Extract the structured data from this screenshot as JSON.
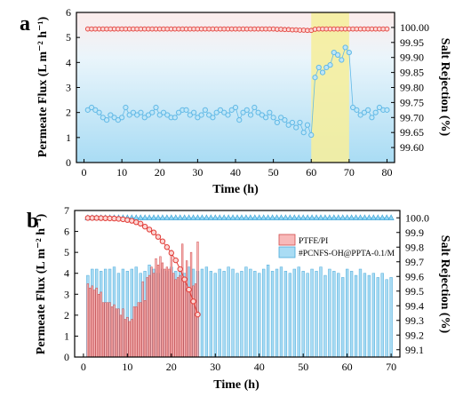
{
  "figure": {
    "panel_a_label": "a",
    "panel_b_label": "b"
  },
  "colors": {
    "flux_blue": "#62b9e6",
    "flux_fill": "#bfe6f8",
    "rejection_red": "#e23b36",
    "rejection_fill": "#fbd7d5",
    "highlight_band": "#f5ee9e",
    "ptfe_bar_fill": "#f8b9b9",
    "ptfe_bar_stroke": "#d14b4b",
    "pcnfs_bar_fill": "#a9dcf4",
    "pcnfs_bar_stroke": "#4aa9d9",
    "triangle_fill": "#8fd5f3"
  },
  "chart_data": [
    {
      "panel": "a",
      "type": "scatter",
      "xlabel": "Time (h)",
      "ylabel_left": "Permeate Flux (L m⁻² h⁻¹)",
      "ylabel_right": "Salt Rejection (%)",
      "xlim": [
        -2,
        82
      ],
      "ylim_left": [
        0,
        6
      ],
      "ylim_right": [
        99.55,
        100.05
      ],
      "x_ticks": [
        0,
        10,
        20,
        30,
        40,
        50,
        60,
        70,
        80
      ],
      "y_left_ticks": [
        0,
        1,
        2,
        3,
        4,
        5,
        6
      ],
      "y_right_ticks": [
        99.6,
        99.65,
        99.7,
        99.75,
        99.8,
        99.85,
        99.9,
        99.95,
        100.0
      ],
      "y_right_tick_labels": [
        "99.60",
        "99.65",
        "99.70",
        "99.75",
        "99.80",
        "99.85",
        "99.90",
        "99.95",
        "100.00"
      ],
      "highlight_range": [
        60,
        70
      ],
      "series": [
        {
          "role": "permeate-flux",
          "axis": "left",
          "x": [
            1,
            2,
            3,
            4,
            5,
            6,
            7,
            8,
            9,
            10,
            11,
            12,
            13,
            14,
            15,
            16,
            17,
            18,
            19,
            20,
            21,
            22,
            23,
            24,
            25,
            26,
            27,
            28,
            29,
            30,
            31,
            32,
            33,
            34,
            35,
            36,
            37,
            38,
            39,
            40,
            41,
            42,
            43,
            44,
            45,
            46,
            47,
            48,
            49,
            50,
            51,
            52,
            53,
            54,
            55,
            56,
            57,
            58,
            59,
            60,
            61,
            62,
            63,
            64,
            65,
            66,
            67,
            68,
            69,
            70,
            71,
            72,
            73,
            74,
            75,
            76,
            77,
            78,
            79,
            80
          ],
          "y": [
            2.1,
            2.2,
            2.1,
            2.0,
            1.8,
            1.7,
            1.9,
            1.8,
            1.7,
            1.8,
            2.2,
            1.9,
            2.0,
            1.9,
            2.0,
            1.8,
            1.9,
            2.0,
            2.2,
            1.9,
            2.0,
            1.9,
            1.8,
            1.8,
            2.0,
            2.1,
            2.1,
            1.9,
            2.0,
            1.8,
            1.9,
            2.1,
            1.9,
            1.8,
            2.0,
            2.1,
            2.0,
            1.9,
            2.1,
            2.2,
            1.7,
            2.0,
            2.1,
            1.9,
            2.2,
            2.0,
            1.9,
            1.8,
            2.0,
            1.8,
            1.6,
            1.8,
            1.7,
            1.5,
            1.6,
            1.4,
            1.6,
            1.2,
            1.5,
            1.1,
            3.4,
            3.8,
            3.6,
            3.8,
            3.9,
            4.4,
            4.3,
            4.1,
            4.6,
            4.4,
            2.2,
            2.1,
            1.9,
            2.0,
            2.1,
            1.8,
            2.0,
            2.2,
            2.1,
            2.1
          ]
        },
        {
          "role": "salt-rejection",
          "axis": "right",
          "x": [
            1,
            2,
            3,
            4,
            5,
            6,
            7,
            8,
            9,
            10,
            11,
            12,
            13,
            14,
            15,
            16,
            17,
            18,
            19,
            20,
            21,
            22,
            23,
            24,
            25,
            26,
            27,
            28,
            29,
            30,
            31,
            32,
            33,
            34,
            35,
            36,
            37,
            38,
            39,
            40,
            41,
            42,
            43,
            44,
            45,
            46,
            47,
            48,
            49,
            50,
            51,
            52,
            53,
            54,
            55,
            56,
            57,
            58,
            59,
            60,
            61,
            62,
            63,
            64,
            65,
            66,
            67,
            68,
            69,
            70,
            71,
            72,
            73,
            74,
            75,
            76,
            77,
            78,
            79,
            80
          ],
          "y": [
            99.995,
            99.995,
            99.995,
            99.995,
            99.995,
            99.995,
            99.995,
            99.995,
            99.995,
            99.995,
            99.995,
            99.995,
            99.995,
            99.995,
            99.995,
            99.995,
            99.995,
            99.995,
            99.995,
            99.995,
            99.995,
            99.995,
            99.995,
            99.995,
            99.995,
            99.995,
            99.995,
            99.995,
            99.995,
            99.995,
            99.995,
            99.995,
            99.995,
            99.995,
            99.995,
            99.995,
            99.995,
            99.995,
            99.995,
            99.995,
            99.995,
            99.995,
            99.995,
            99.995,
            99.995,
            99.995,
            99.995,
            99.995,
            99.995,
            99.995,
            99.994,
            99.994,
            99.993,
            99.993,
            99.992,
            99.992,
            99.991,
            99.991,
            99.99,
            99.99,
            99.994,
            99.995,
            99.995,
            99.995,
            99.995,
            99.995,
            99.995,
            99.995,
            99.995,
            99.995,
            99.995,
            99.995,
            99.995,
            99.995,
            99.995,
            99.995,
            99.995,
            99.995,
            99.995,
            99.995
          ]
        }
      ]
    },
    {
      "panel": "b",
      "type": "bar",
      "xlabel": "Time (h)",
      "ylabel_left": "Permeate Flux (L m⁻² h⁻¹)",
      "ylabel_right": "Salt Rejection (%)",
      "xlim": [
        -2,
        72
      ],
      "ylim_left": [
        0,
        7
      ],
      "ylim_right": [
        99.05,
        100.05
      ],
      "x_ticks": [
        0,
        10,
        20,
        30,
        40,
        50,
        60,
        70
      ],
      "y_left_ticks": [
        0,
        1,
        2,
        3,
        4,
        5,
        6,
        7
      ],
      "y_right_ticks": [
        99.1,
        99.2,
        99.3,
        99.4,
        99.5,
        99.6,
        99.7,
        99.8,
        99.9,
        100.0
      ],
      "y_right_tick_labels": [
        "99.1",
        "99.2",
        "99.3",
        "99.4",
        "99.5",
        "99.6",
        "99.7",
        "99.8",
        "99.9",
        "100.0"
      ],
      "legend": [
        "PTFE/PI",
        "#PCNFS-OH@PPTA-0.1/M"
      ],
      "legend_position": "center-right",
      "series": [
        {
          "name": "PTFE/PI",
          "kind": "bar",
          "axis": "left",
          "x": [
            1,
            1.5,
            2,
            2.5,
            3,
            3.5,
            4,
            4.5,
            5,
            5.5,
            6,
            6.5,
            7,
            7.5,
            8,
            8.5,
            9,
            9.5,
            10,
            10.5,
            11,
            11.5,
            12,
            12.5,
            13,
            13.5,
            14,
            14.5,
            15,
            15.5,
            16,
            16.5,
            17,
            17.5,
            18,
            18.5,
            19,
            19.5,
            20,
            20.5,
            21,
            21.5,
            22,
            22.5,
            23,
            23.5,
            24,
            24.5,
            25,
            25.5,
            26
          ],
          "values": [
            3.5,
            3.3,
            3.4,
            3.2,
            3.3,
            3.0,
            3.1,
            2.6,
            2.6,
            2.6,
            2.6,
            2.4,
            2.5,
            2.3,
            2.3,
            2.0,
            2.3,
            1.8,
            1.9,
            1.7,
            1.8,
            2.4,
            2.4,
            2.6,
            2.6,
            3.6,
            2.7,
            3.8,
            3.9,
            4.3,
            4.0,
            4.7,
            4.4,
            4.8,
            4.5,
            4.2,
            4.3,
            4.2,
            5.1,
            4.0,
            3.7,
            3.8,
            3.9,
            5.4,
            3.6,
            4.6,
            3.3,
            5.0,
            3.4,
            3.5,
            5.5
          ]
        },
        {
          "name": "#PCNFS-OH@PPTA-0.1/M",
          "kind": "bar",
          "axis": "left",
          "x": [
            1,
            2,
            3,
            4,
            5,
            6,
            7,
            8,
            9,
            10,
            11,
            12,
            13,
            14,
            15,
            16,
            17,
            18,
            19,
            20,
            21,
            22,
            23,
            24,
            25,
            26,
            27,
            28,
            29,
            30,
            31,
            32,
            33,
            34,
            35,
            36,
            37,
            38,
            39,
            40,
            41,
            42,
            43,
            44,
            45,
            46,
            47,
            48,
            49,
            50,
            51,
            52,
            53,
            54,
            55,
            56,
            57,
            58,
            59,
            60,
            61,
            62,
            63,
            64,
            65,
            66,
            67,
            68,
            69,
            70
          ],
          "values": [
            3.9,
            4.2,
            4.2,
            4.1,
            4.2,
            4.2,
            4.3,
            4.0,
            4.2,
            4.1,
            4.2,
            4.3,
            4.0,
            4.1,
            4.4,
            4.2,
            4.0,
            4.2,
            4.1,
            4.3,
            4.1,
            4.2,
            4.0,
            4.3,
            4.2,
            4.1,
            4.2,
            4.3,
            4.1,
            4.0,
            4.2,
            4.1,
            4.3,
            4.2,
            4.0,
            4.1,
            4.3,
            4.2,
            4.1,
            4.0,
            4.2,
            4.4,
            4.1,
            4.2,
            4.3,
            4.1,
            4.0,
            4.2,
            4.3,
            4.1,
            4.0,
            4.2,
            4.1,
            4.3,
            3.9,
            4.2,
            4.1,
            4.0,
            3.8,
            4.2,
            4.1,
            3.9,
            4.2,
            4.0,
            3.9,
            4.0,
            3.8,
            4.0,
            3.7,
            3.8
          ]
        },
        {
          "name": "PTFE/PI",
          "kind": "rejection",
          "axis": "right",
          "x": [
            1,
            2,
            3,
            4,
            5,
            6,
            7,
            8,
            9,
            10,
            11,
            12,
            13,
            14,
            15,
            16,
            17,
            18,
            19,
            20,
            21,
            22,
            23,
            24,
            25,
            26
          ],
          "values": [
            99.999,
            99.999,
            99.999,
            99.998,
            99.997,
            99.996,
            99.995,
            99.993,
            99.99,
            99.985,
            99.98,
            99.97,
            99.96,
            99.94,
            99.92,
            99.9,
            99.87,
            99.84,
            99.8,
            99.76,
            99.71,
            99.65,
            99.58,
            99.51,
            99.43,
            99.34
          ]
        },
        {
          "name": "#PCNFS-OH@PPTA-0.1/M",
          "kind": "rejection",
          "axis": "right",
          "x": [
            1,
            2,
            3,
            4,
            5,
            6,
            7,
            8,
            9,
            10,
            11,
            12,
            13,
            14,
            15,
            16,
            17,
            18,
            19,
            20,
            21,
            22,
            23,
            24,
            25,
            26,
            27,
            28,
            29,
            30,
            31,
            32,
            33,
            34,
            35,
            36,
            37,
            38,
            39,
            40,
            41,
            42,
            43,
            44,
            45,
            46,
            47,
            48,
            49,
            50,
            51,
            52,
            53,
            54,
            55,
            56,
            57,
            58,
            59,
            60,
            61,
            62,
            63,
            64,
            65,
            66,
            67,
            68,
            69,
            70
          ],
          "values": [
            100.0,
            100.0,
            100.0,
            100.0,
            100.0,
            100.0,
            100.0,
            100.0,
            100.0,
            100.0,
            100.0,
            100.0,
            100.0,
            100.0,
            100.0,
            100.0,
            100.0,
            100.0,
            100.0,
            100.0,
            100.0,
            100.0,
            100.0,
            100.0,
            100.0,
            100.0,
            100.0,
            100.0,
            100.0,
            100.0,
            100.0,
            100.0,
            100.0,
            100.0,
            100.0,
            100.0,
            100.0,
            100.0,
            100.0,
            100.0,
            100.0,
            100.0,
            100.0,
            100.0,
            100.0,
            100.0,
            100.0,
            100.0,
            100.0,
            100.0,
            100.0,
            100.0,
            100.0,
            100.0,
            100.0,
            100.0,
            100.0,
            100.0,
            100.0,
            100.0,
            100.0,
            100.0,
            100.0,
            100.0,
            100.0,
            100.0,
            100.0,
            100.0,
            100.0,
            100.0
          ]
        }
      ]
    }
  ]
}
